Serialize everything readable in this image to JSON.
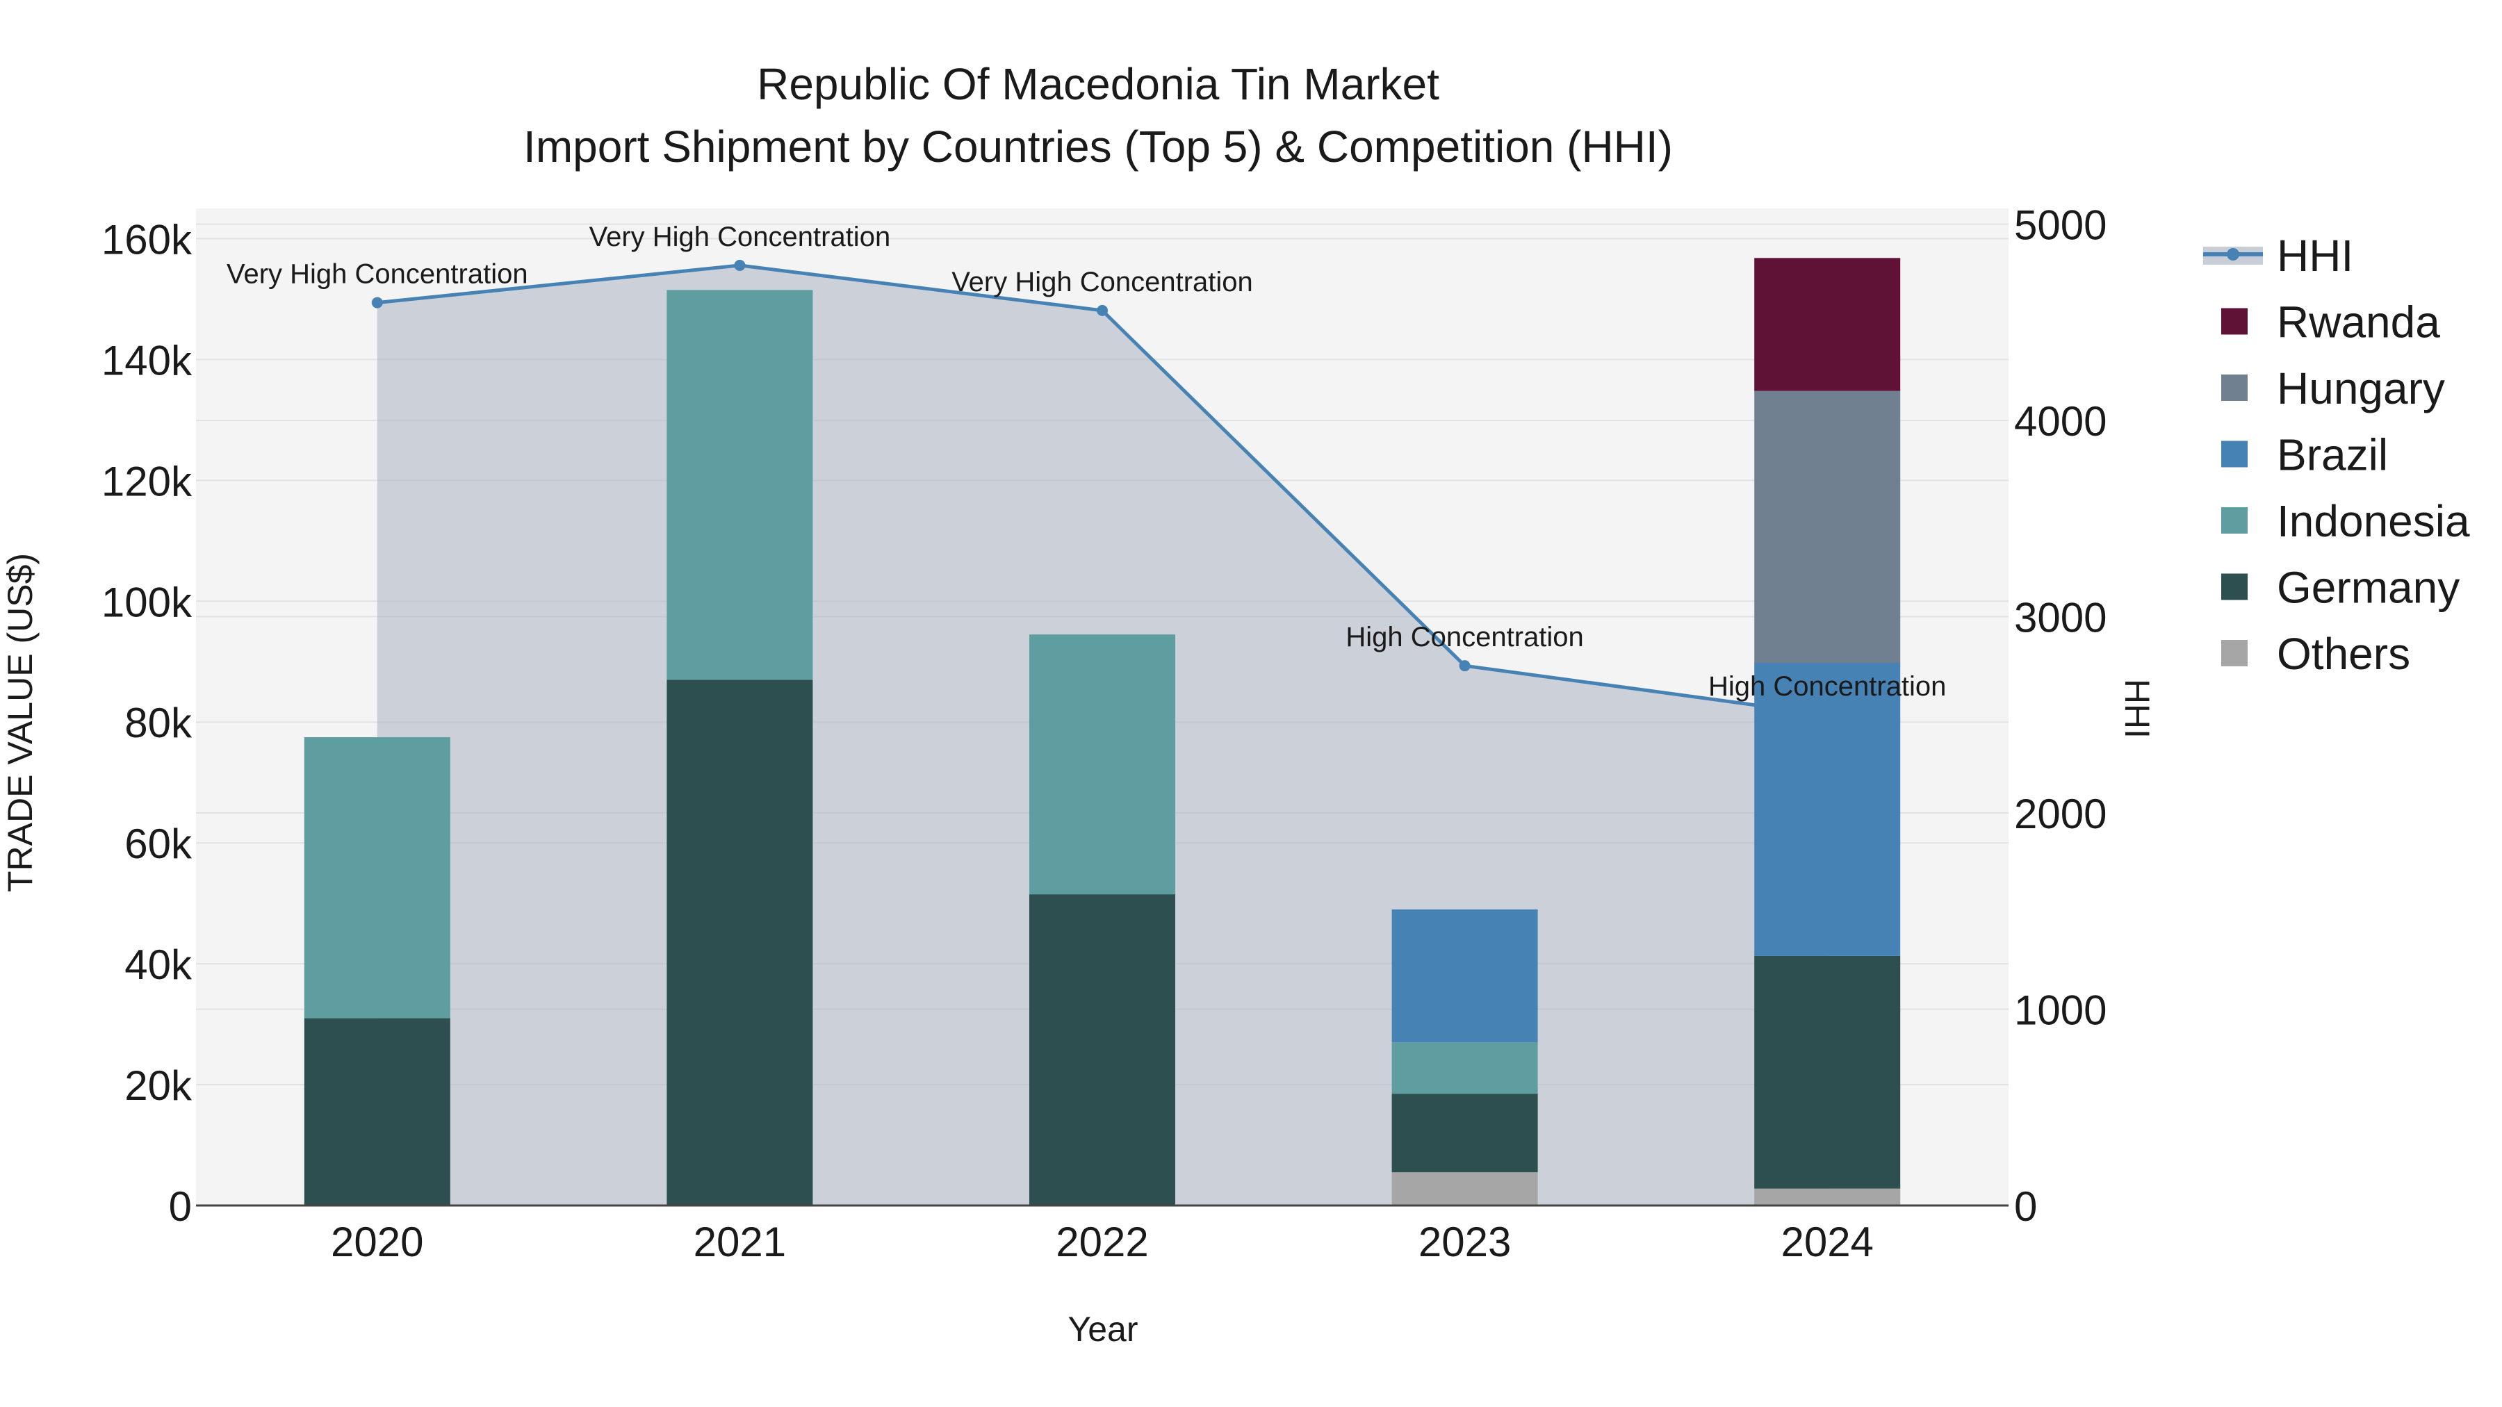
{
  "chart_data": {
    "type": "bar",
    "title": "Republic Of Macedonia Tin Market",
    "subtitle": "Import Shipment by Countries (Top 5) & Competition (HHI)",
    "xlabel": "Year",
    "ylabel": "TRADE VALUE (US$)",
    "y2label": "HHI",
    "categories": [
      "2020",
      "2021",
      "2022",
      "2023",
      "2024"
    ],
    "ylim": [
      0,
      165000
    ],
    "y_ticks": [
      0,
      20000,
      40000,
      60000,
      80000,
      100000,
      120000,
      140000,
      160000
    ],
    "y_tick_labels": [
      "0",
      "20k",
      "40k",
      "60k",
      "80k",
      "100k",
      "120k",
      "140k",
      "160k"
    ],
    "y2lim": [
      0,
      5080
    ],
    "y2_ticks": [
      0,
      1000,
      2000,
      3000,
      4000,
      5000
    ],
    "y2_tick_labels": [
      "0",
      "1000",
      "2000",
      "3000",
      "4000",
      "5000"
    ],
    "series": [
      {
        "name": "Others",
        "color": "#a6a6a6",
        "values": [
          0,
          0,
          0,
          5500,
          2800
        ]
      },
      {
        "name": "Germany",
        "color": "#2e4f4f",
        "values": [
          31000,
          87000,
          51500,
          13000,
          38500
        ]
      },
      {
        "name": "Indonesia",
        "color": "#5f9ea0",
        "values": [
          46500,
          64500,
          43000,
          8500,
          0
        ]
      },
      {
        "name": "Brazil",
        "color": "#4682b4",
        "values": [
          0,
          0,
          0,
          22000,
          48500
        ]
      },
      {
        "name": "Hungary",
        "color": "#708090",
        "values": [
          0,
          0,
          0,
          0,
          45000
        ]
      },
      {
        "name": "Rwanda",
        "color": "#5f1236",
        "values": [
          0,
          0,
          0,
          0,
          22000
        ]
      }
    ],
    "hhi": {
      "name": "HHI",
      "color": "#4682b4",
      "values": [
        4600,
        4790,
        4560,
        2750,
        2500
      ],
      "annotations": [
        "Very High Concentration",
        "Very High Concentration",
        "Very High Concentration",
        "High Concentration",
        "High Concentration"
      ]
    },
    "legend_order": [
      "HHI",
      "Rwanda",
      "Hungary",
      "Brazil",
      "Indonesia",
      "Germany",
      "Others"
    ],
    "legend_position": "right"
  }
}
